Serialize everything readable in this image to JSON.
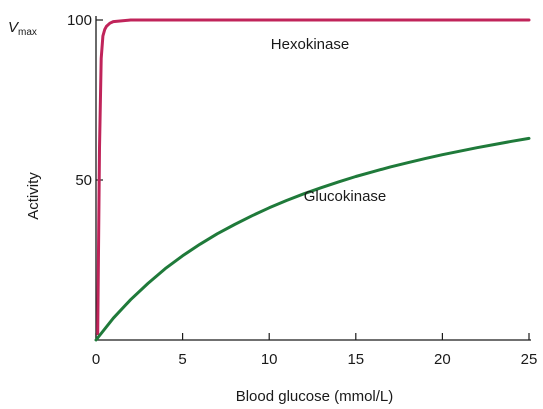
{
  "chart_data": {
    "type": "line",
    "xlabel": "Blood glucose (mmol/L)",
    "ylabel": "Activity",
    "xlim": [
      0,
      25
    ],
    "ylim": [
      0,
      100
    ],
    "x_ticks": [
      "0",
      "5",
      "10",
      "15",
      "20",
      "25"
    ],
    "y_ticks": [
      "50",
      "100"
    ],
    "vmax_label": {
      "main": "V",
      "sub": "max"
    },
    "grid": false,
    "series": [
      {
        "name": "Hexokinase",
        "color": "#c0245a",
        "x": [
          0.1,
          0.2,
          0.3,
          0.4,
          0.5,
          0.6,
          0.8,
          1,
          2,
          5,
          10,
          15,
          20,
          25
        ],
        "y": [
          2,
          60,
          88,
          95,
          97,
          98,
          99,
          99.5,
          100,
          100,
          100,
          100,
          100,
          100
        ]
      },
      {
        "name": "Glucokinase",
        "color": "#1f7a3a",
        "x": [
          0,
          1,
          2,
          3,
          4,
          5,
          6,
          7,
          8,
          9,
          10,
          11,
          12,
          13,
          14,
          15,
          16,
          17,
          18,
          19,
          20,
          21,
          22,
          23,
          24,
          25
        ],
        "y": [
          0,
          6.8,
          12.6,
          17.7,
          22.3,
          26.3,
          29.9,
          33.2,
          36.1,
          38.8,
          41.3,
          43.6,
          45.7,
          47.6,
          49.4,
          51.1,
          52.6,
          54.1,
          55.4,
          56.7,
          57.9,
          59.0,
          60.1,
          61.1,
          62.1,
          63.0
        ]
      }
    ]
  }
}
